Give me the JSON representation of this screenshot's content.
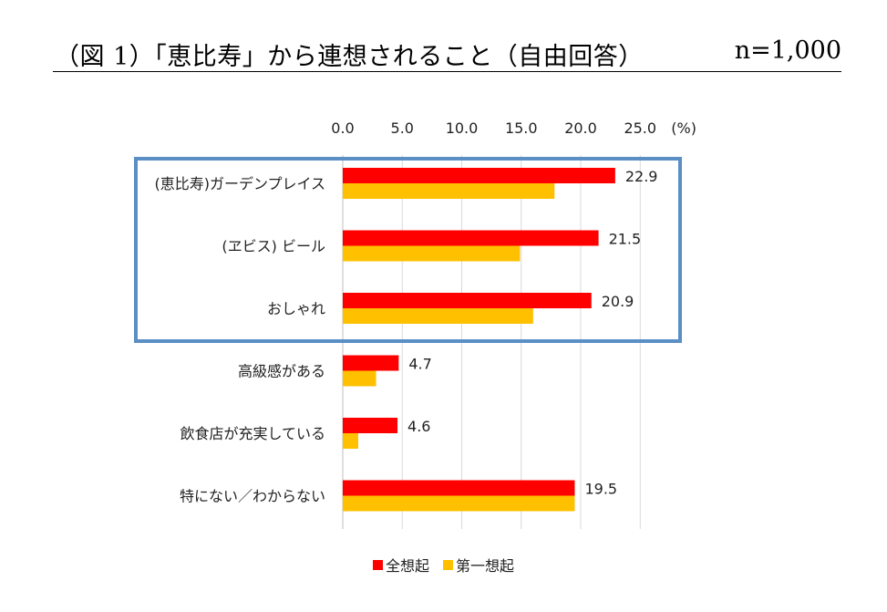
{
  "header": {
    "title": "（図 1）「恵比寿」から連想されること（自由回答）",
    "n_label": "n=1,000"
  },
  "chart_data": {
    "type": "bar",
    "orientation": "horizontal",
    "categories": [
      "(恵比寿)ガーデンプレイス",
      "(ヱビス) ビール",
      "おしゃれ",
      "高級感がある",
      "飲食店が充実している",
      "特にない／わからない"
    ],
    "series": [
      {
        "name": "全想起",
        "values": [
          22.9,
          21.5,
          20.9,
          4.7,
          4.6,
          19.5
        ],
        "color": "#ff0000"
      },
      {
        "name": "第一想起",
        "values": [
          17.8,
          14.9,
          16.0,
          2.8,
          1.3,
          19.5
        ],
        "color": "#ffc000"
      }
    ],
    "data_labels_series": "全想起",
    "x_ticks": [
      "0.0",
      "5.0",
      "10.0",
      "15.0",
      "20.0",
      "25.0"
    ],
    "x_unit_label": "(%)",
    "xlim": [
      0,
      25
    ],
    "grid": "vertical",
    "legend": "bottom-center",
    "highlight_box_categories": 3,
    "highlight_color": "#5b8ec5"
  }
}
